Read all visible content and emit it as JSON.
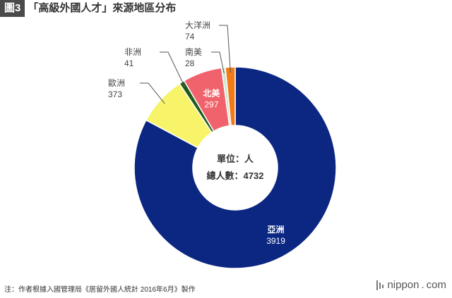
{
  "header": {
    "badge": "圖3",
    "title": "「高級外國人才」來源地區分布"
  },
  "footnote": "注：作者根據入國管理局《居留外國人統計 2016年6月》製作",
  "brand": {
    "name": "nippon",
    "dot": ".",
    "suffix": "com",
    "icon": "nippon-logo-icon"
  },
  "chart_data": {
    "type": "pie",
    "style": "donut",
    "center_text": [
      "單位：人",
      "總人數：4732"
    ],
    "total": 4732,
    "slices": [
      {
        "label": "亞洲",
        "value": 3919,
        "color": "#0b2782"
      },
      {
        "label": "歐洲",
        "value": 373,
        "color": "#f7f46a"
      },
      {
        "label": "非洲",
        "value": 41,
        "color": "#1f5a19"
      },
      {
        "label": "北美",
        "value": 297,
        "color": "#f0636c"
      },
      {
        "label": "南美",
        "value": 28,
        "color": "#c9e8cf"
      },
      {
        "label": "大洋洲",
        "value": 74,
        "color": "#f27b18"
      }
    ]
  }
}
